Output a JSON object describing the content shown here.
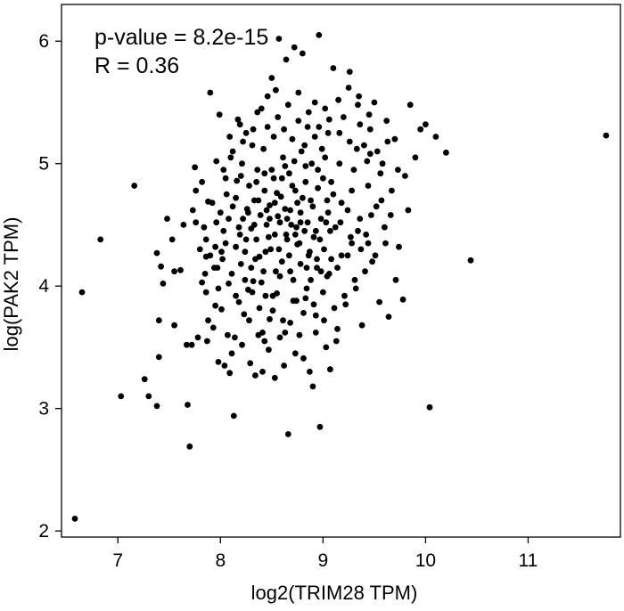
{
  "chart_data": {
    "type": "scatter",
    "xlabel": "log2(TRIM28 TPM)",
    "ylabel": "log(PAK2 TPM)",
    "annotations": [
      "p-value = 8.2e-15",
      "R = 0.36"
    ],
    "xlim": [
      6.45,
      11.9
    ],
    "ylim": [
      1.95,
      6.3
    ],
    "xticks": [
      7,
      8,
      9,
      10,
      11
    ],
    "yticks": [
      2,
      3,
      4,
      5,
      6
    ],
    "grid": false,
    "legend": "none",
    "point_color": "#000000",
    "points": [
      [
        6.58,
        2.1
      ],
      [
        6.65,
        3.95
      ],
      [
        6.83,
        4.38
      ],
      [
        7.03,
        3.1
      ],
      [
        7.16,
        4.82
      ],
      [
        7.26,
        3.24
      ],
      [
        7.3,
        3.1
      ],
      [
        7.38,
        3.02
      ],
      [
        7.38,
        4.27
      ],
      [
        7.4,
        3.72
      ],
      [
        7.4,
        3.42
      ],
      [
        7.42,
        4.16
      ],
      [
        7.44,
        4.02
      ],
      [
        7.48,
        4.55
      ],
      [
        7.53,
        4.38
      ],
      [
        7.55,
        3.68
      ],
      [
        7.55,
        4.12
      ],
      [
        7.61,
        4.13
      ],
      [
        7.64,
        4.5
      ],
      [
        7.67,
        3.52
      ],
      [
        7.68,
        3.03
      ],
      [
        7.7,
        2.69
      ],
      [
        7.72,
        3.52
      ],
      [
        7.73,
        4.62
      ],
      [
        7.75,
        4.97
      ],
      [
        7.76,
        4.78
      ],
      [
        7.78,
        3.58
      ],
      [
        7.8,
        4.3
      ],
      [
        7.82,
        4.03
      ],
      [
        7.84,
        4.48
      ],
      [
        7.85,
        4.1
      ],
      [
        7.86,
        4.24
      ],
      [
        7.86,
        3.95
      ],
      [
        7.87,
        3.55
      ],
      [
        7.88,
        4.69
      ],
      [
        7.9,
        5.58
      ],
      [
        7.9,
        4.25
      ],
      [
        7.93,
        3.66
      ],
      [
        7.95,
        4.32
      ],
      [
        7.95,
        3.84
      ],
      [
        7.96,
        4.52
      ],
      [
        7.97,
        4.15
      ],
      [
        7.98,
        3.38
      ],
      [
        7.99,
        5.4
      ],
      [
        8.0,
        4.6
      ],
      [
        8.01,
        3.81
      ],
      [
        8.02,
        4.22
      ],
      [
        8.03,
        4.45
      ],
      [
        8.04,
        3.35
      ],
      [
        8.05,
        4.88
      ],
      [
        8.06,
        4.75
      ],
      [
        8.07,
        3.6
      ],
      [
        8.08,
        4.02
      ],
      [
        8.09,
        3.29
      ],
      [
        8.1,
        5.05
      ],
      [
        8.11,
        4.1
      ],
      [
        8.12,
        4.65
      ],
      [
        8.13,
        2.94
      ],
      [
        8.14,
        3.58
      ],
      [
        8.15,
        4.32
      ],
      [
        8.16,
        4.86
      ],
      [
        8.17,
        5.36
      ],
      [
        8.18,
        3.87
      ],
      [
        8.19,
        4.42
      ],
      [
        8.2,
        4.18
      ],
      [
        8.21,
        5.0
      ],
      [
        8.22,
        4.55
      ],
      [
        8.23,
        3.77
      ],
      [
        8.24,
        4.28
      ],
      [
        8.25,
        5.25
      ],
      [
        8.26,
        4.63
      ],
      [
        8.27,
        3.97
      ],
      [
        8.28,
        4.82
      ],
      [
        8.29,
        3.37
      ],
      [
        8.3,
        4.47
      ],
      [
        8.31,
        5.15
      ],
      [
        8.32,
        4.04
      ],
      [
        8.33,
        4.7
      ],
      [
        8.34,
        3.27
      ],
      [
        8.35,
        4.38
      ],
      [
        8.36,
        4.95
      ],
      [
        8.37,
        3.6
      ],
      [
        8.38,
        4.24
      ],
      [
        8.39,
        4.58
      ],
      [
        8.4,
        5.45
      ],
      [
        8.41,
        3.3
      ],
      [
        8.42,
        4.12
      ],
      [
        8.43,
        4.78
      ],
      [
        8.44,
        3.92
      ],
      [
        8.45,
        4.5
      ],
      [
        8.46,
        5.3
      ],
      [
        8.47,
        3.48
      ],
      [
        8.48,
        4.66
      ],
      [
        8.49,
        4.3
      ],
      [
        8.5,
        5.7
      ],
      [
        8.51,
        3.8
      ],
      [
        8.52,
        4.88
      ],
      [
        8.53,
        4.42
      ],
      [
        8.54,
        5.6
      ],
      [
        8.55,
        3.94
      ],
      [
        8.56,
        4.57
      ],
      [
        8.57,
        6.02
      ],
      [
        8.58,
        3.58
      ],
      [
        8.59,
        4.73
      ],
      [
        8.6,
        4.2
      ],
      [
        8.61,
        5.05
      ],
      [
        8.62,
        3.35
      ],
      [
        8.63,
        4.63
      ],
      [
        8.64,
        5.85
      ],
      [
        8.65,
        4.38
      ],
      [
        8.66,
        2.79
      ],
      [
        8.67,
        4.92
      ],
      [
        8.68,
        3.7
      ],
      [
        8.69,
        4.5
      ],
      [
        8.7,
        5.2
      ],
      [
        8.71,
        4.05
      ],
      [
        8.72,
        5.95
      ],
      [
        8.73,
        4.78
      ],
      [
        8.74,
        3.88
      ],
      [
        8.75,
        4.34
      ],
      [
        8.76,
        5.35
      ],
      [
        8.77,
        3.6
      ],
      [
        8.78,
        4.6
      ],
      [
        8.79,
        5.1
      ],
      [
        8.8,
        5.9
      ],
      [
        8.81,
        3.41
      ],
      [
        8.82,
        4.45
      ],
      [
        8.83,
        4.85
      ],
      [
        8.84,
        3.98
      ],
      [
        8.85,
        5.3
      ],
      [
        8.86,
        4.25
      ],
      [
        8.87,
        3.3
      ],
      [
        8.88,
        4.7
      ],
      [
        8.89,
        5.0
      ],
      [
        8.9,
        3.18
      ],
      [
        8.91,
        4.4
      ],
      [
        8.92,
        5.5
      ],
      [
        8.93,
        3.76
      ],
      [
        8.94,
        4.15
      ],
      [
        8.95,
        4.95
      ],
      [
        8.96,
        6.05
      ],
      [
        8.97,
        2.85
      ],
      [
        8.98,
        4.55
      ],
      [
        8.99,
        5.12
      ],
      [
        9.0,
        3.95
      ],
      [
        9.01,
        4.3
      ],
      [
        9.02,
        5.45
      ],
      [
        9.03,
        3.5
      ],
      [
        9.04,
        4.7
      ],
      [
        9.05,
        5.25
      ],
      [
        9.06,
        4.1
      ],
      [
        9.07,
        3.32
      ],
      [
        9.08,
        4.85
      ],
      [
        9.1,
        5.78
      ],
      [
        9.12,
        4.48
      ],
      [
        9.14,
        3.65
      ],
      [
        9.16,
        5.0
      ],
      [
        9.18,
        4.25
      ],
      [
        9.2,
        5.38
      ],
      [
        9.22,
        3.85
      ],
      [
        9.24,
        4.62
      ],
      [
        9.26,
        5.75
      ],
      [
        9.28,
        4.35
      ],
      [
        9.3,
        4.95
      ],
      [
        9.32,
        3.98
      ],
      [
        9.34,
        5.48
      ],
      [
        9.36,
        4.55
      ],
      [
        9.38,
        3.68
      ],
      [
        9.4,
        5.15
      ],
      [
        9.42,
        4.42
      ],
      [
        9.44,
        4.82
      ],
      [
        9.46,
        5.28
      ],
      [
        9.48,
        4.2
      ],
      [
        9.5,
        5.5
      ],
      [
        9.52,
        4.65
      ],
      [
        9.55,
        3.87
      ],
      [
        9.58,
        5.0
      ],
      [
        9.6,
        4.48
      ],
      [
        9.62,
        5.35
      ],
      [
        9.64,
        3.75
      ],
      [
        9.66,
        4.58
      ],
      [
        9.7,
        5.2
      ],
      [
        9.74,
        4.32
      ],
      [
        9.78,
        3.89
      ],
      [
        9.8,
        4.9
      ],
      [
        9.85,
        5.48
      ],
      [
        9.9,
        5.05
      ],
      [
        9.95,
        5.28
      ],
      [
        10.0,
        5.32
      ],
      [
        10.04,
        3.01
      ],
      [
        10.1,
        5.22
      ],
      [
        10.2,
        5.09
      ],
      [
        10.44,
        4.21
      ],
      [
        11.76,
        5.23
      ],
      [
        8.15,
        4.72
      ],
      [
        8.25,
        4.38
      ],
      [
        8.35,
        4.85
      ],
      [
        8.45,
        4.62
      ],
      [
        8.55,
        4.76
      ],
      [
        8.65,
        4.55
      ],
      [
        8.75,
        4.68
      ],
      [
        8.85,
        4.52
      ],
      [
        8.95,
        4.8
      ],
      [
        9.05,
        4.6
      ],
      [
        8.2,
        4.9
      ],
      [
        8.3,
        4.15
      ],
      [
        8.4,
        4.03
      ],
      [
        8.5,
        4.95
      ],
      [
        8.6,
        4.88
      ],
      [
        8.7,
        4.82
      ],
      [
        8.8,
        4.72
      ],
      [
        8.9,
        4.65
      ],
      [
        9.0,
        4.88
      ],
      [
        9.1,
        4.75
      ],
      [
        8.38,
        3.82
      ],
      [
        8.48,
        3.73
      ],
      [
        8.58,
        4.08
      ],
      [
        8.68,
        4.12
      ],
      [
        8.78,
        4.18
      ],
      [
        8.88,
        4.05
      ],
      [
        8.98,
        4.12
      ],
      [
        9.08,
        4.22
      ],
      [
        9.18,
        4.68
      ],
      [
        9.28,
        4.78
      ],
      [
        8.12,
        5.1
      ],
      [
        8.22,
        5.18
      ],
      [
        8.32,
        5.28
      ],
      [
        8.42,
        5.12
      ],
      [
        8.52,
        5.22
      ],
      [
        8.62,
        5.28
      ],
      [
        8.72,
        5.02
      ],
      [
        8.82,
        5.15
      ],
      [
        8.92,
        5.22
      ],
      [
        9.02,
        5.05
      ],
      [
        8.05,
        4.35
      ],
      [
        8.15,
        3.92
      ],
      [
        8.28,
        3.72
      ],
      [
        8.43,
        3.55
      ],
      [
        8.53,
        3.25
      ],
      [
        8.63,
        3.62
      ],
      [
        8.73,
        3.45
      ],
      [
        8.83,
        3.9
      ],
      [
        8.93,
        3.62
      ],
      [
        9.13,
        3.55
      ],
      [
        7.92,
        4.68
      ],
      [
        8.08,
        4.55
      ],
      [
        8.18,
        4.48
      ],
      [
        8.27,
        4.6
      ],
      [
        8.37,
        4.7
      ],
      [
        8.47,
        4.4
      ],
      [
        8.57,
        4.3
      ],
      [
        8.67,
        4.25
      ],
      [
        8.77,
        4.35
      ],
      [
        8.87,
        4.28
      ],
      [
        8.97,
        4.38
      ],
      [
        9.07,
        4.45
      ],
      [
        9.17,
        4.52
      ],
      [
        9.27,
        4.4
      ],
      [
        9.37,
        4.3
      ],
      [
        9.47,
        4.58
      ],
      [
        9.57,
        4.7
      ],
      [
        9.67,
        4.78
      ],
      [
        9.33,
        5.12
      ],
      [
        9.43,
        5.02
      ],
      [
        9.53,
        5.1
      ],
      [
        9.63,
        5.18
      ],
      [
        9.73,
        4.95
      ],
      [
        9.83,
        4.62
      ],
      [
        9.25,
        5.62
      ],
      [
        9.35,
        5.55
      ],
      [
        9.45,
        5.4
      ],
      [
        9.15,
        5.52
      ],
      [
        7.82,
        4.85
      ],
      [
        7.88,
        3.72
      ],
      [
        7.98,
        3.98
      ],
      [
        8.03,
        4.95
      ],
      [
        8.11,
        3.45
      ],
      [
        8.21,
        3.52
      ],
      [
        8.31,
        3.95
      ],
      [
        8.41,
        3.62
      ],
      [
        8.51,
        3.92
      ],
      [
        8.61,
        3.72
      ],
      [
        8.71,
        3.88
      ],
      [
        8.81,
        3.78
      ],
      [
        8.91,
        3.85
      ],
      [
        9.01,
        3.72
      ],
      [
        9.11,
        3.82
      ],
      [
        9.21,
        3.92
      ],
      [
        9.31,
        4.05
      ],
      [
        9.41,
        4.12
      ],
      [
        9.51,
        4.25
      ],
      [
        9.61,
        4.35
      ],
      [
        9.71,
        4.05
      ],
      [
        8.36,
        5.42
      ],
      [
        8.46,
        5.55
      ],
      [
        8.56,
        5.38
      ],
      [
        8.66,
        5.48
      ],
      [
        8.76,
        5.58
      ],
      [
        8.86,
        5.42
      ],
      [
        8.96,
        5.3
      ],
      [
        9.06,
        5.36
      ],
      [
        9.16,
        5.25
      ],
      [
        9.26,
        5.18
      ],
      [
        9.36,
        5.32
      ],
      [
        9.46,
        5.08
      ],
      [
        9.56,
        4.92
      ],
      [
        8.19,
        5.32
      ],
      [
        8.09,
        5.22
      ],
      [
        7.96,
        5.02
      ],
      [
        7.76,
        4.52
      ],
      [
        7.86,
        4.38
      ],
      [
        7.94,
        4.15
      ],
      [
        8.01,
        4.28
      ],
      [
        8.24,
        4.05
      ],
      [
        8.34,
        4.22
      ],
      [
        8.44,
        4.28
      ],
      [
        8.54,
        4.12
      ],
      [
        8.64,
        4.42
      ],
      [
        8.74,
        4.48
      ],
      [
        8.84,
        4.15
      ],
      [
        8.94,
        4.22
      ],
      [
        9.04,
        4.08
      ],
      [
        9.14,
        4.15
      ],
      [
        9.24,
        4.25
      ],
      [
        9.34,
        4.45
      ],
      [
        9.44,
        4.35
      ],
      [
        8.33,
        4.5
      ],
      [
        8.43,
        4.92
      ],
      [
        8.53,
        4.68
      ],
      [
        8.63,
        4.98
      ],
      [
        8.73,
        4.42
      ],
      [
        8.83,
        4.98
      ],
      [
        8.93,
        4.45
      ],
      [
        9.03,
        4.52
      ],
      [
        8.58,
        4.52
      ],
      [
        8.68,
        4.62
      ],
      [
        8.78,
        4.52
      ],
      [
        8.48,
        4.55
      ]
    ]
  }
}
